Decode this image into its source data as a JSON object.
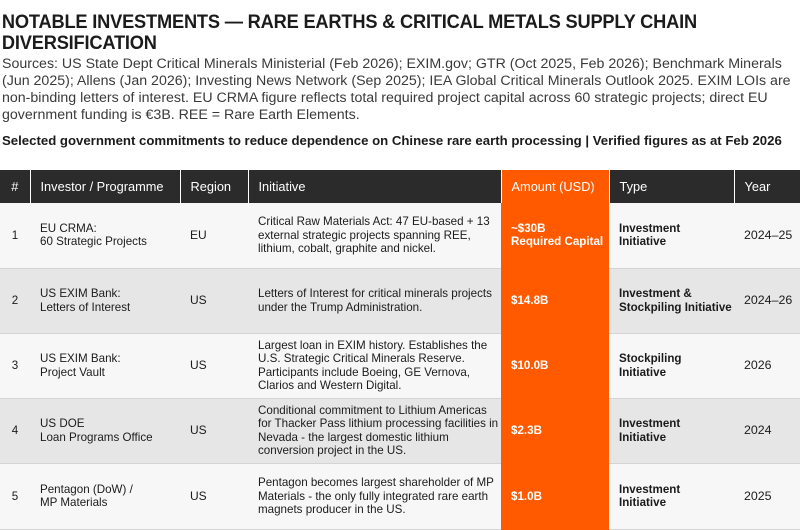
{
  "title": "NOTABLE INVESTMENTS — RARE EARTHS & CRITICAL METALS SUPPLY CHAIN DIVERSIFICATION",
  "sources": "Sources: US State Dept Critical Minerals Ministerial (Feb 2026); EXIM.gov; GTR (Oct 2025, Feb 2026); Benchmark Minerals (Jun 2025); Allens (Jan 2026); Investing News Network (Sep 2025); IEA Global Critical Minerals Outlook 2025. EXIM LOIs are non-binding letters of interest. EU CRMA figure reflects total required project capital across 60 strategic projects; direct EU government funding is €3B. REE = Rare Earth Elements.",
  "subtitle": "Selected government commitments to reduce dependence on Chinese rare earth processing | Verified figures as at Feb 2026",
  "colors": {
    "header_bg": "#2b2b2b",
    "accent": "#ff5a00",
    "row_alt": "#e6e6e6",
    "row_base": "#f7f7f7"
  },
  "table": {
    "headers": [
      "#",
      "Investor / Programme",
      "Region",
      "Initiative",
      "Amount (USD)",
      "Type",
      "Year"
    ],
    "rows": [
      {
        "num": "1",
        "investor": [
          "EU CRMA:",
          "60 Strategic Projects"
        ],
        "region": "EU",
        "initiative": "Critical Raw Materials Act: 47 EU-based + 13 external strategic projects spanning REE, lithium, cobalt, graphite and nickel.",
        "amount": [
          "~$30B",
          "Required Capital"
        ],
        "type": [
          "Investment",
          "Initiative"
        ],
        "year": "2024–25"
      },
      {
        "num": "2",
        "investor": [
          "US EXIM Bank:",
          "Letters of Interest"
        ],
        "region": "US",
        "initiative": "Letters of Interest for critical minerals projects under the Trump Administration.",
        "amount": [
          "$14.8B"
        ],
        "type": [
          "Investment &",
          "Stockpiling Initiative"
        ],
        "year": "2024–26"
      },
      {
        "num": "3",
        "investor": [
          "US EXIM Bank:",
          "Project Vault"
        ],
        "region": "US",
        "initiative": "Largest loan in EXIM history. Establishes the U.S. Strategic Critical Minerals Reserve. Participants include Boeing, GE Vernova, Clarios and Western Digital.",
        "amount": [
          "$10.0B"
        ],
        "type": [
          "Stockpiling",
          "Initiative"
        ],
        "year": "2026"
      },
      {
        "num": "4",
        "investor": [
          "US DOE",
          "Loan Programs Office"
        ],
        "region": "US",
        "initiative": "Conditional commitment to Lithium Americas for Thacker Pass lithium processing facilities in Nevada - the largest domestic lithium conversion project in the US.",
        "amount": [
          "$2.3B"
        ],
        "type": [
          "Investment",
          "Initiative"
        ],
        "year": "2024"
      },
      {
        "num": "5",
        "investor": [
          "Pentagon (DoW) /",
          "MP Materials"
        ],
        "region": "US",
        "initiative": "Pentagon becomes largest shareholder of MP Materials - the only fully integrated rare earth magnets producer in the US.",
        "amount": [
          "$1.0B"
        ],
        "type": [
          "Investment",
          "Initiative"
        ],
        "year": "2025"
      }
    ]
  }
}
